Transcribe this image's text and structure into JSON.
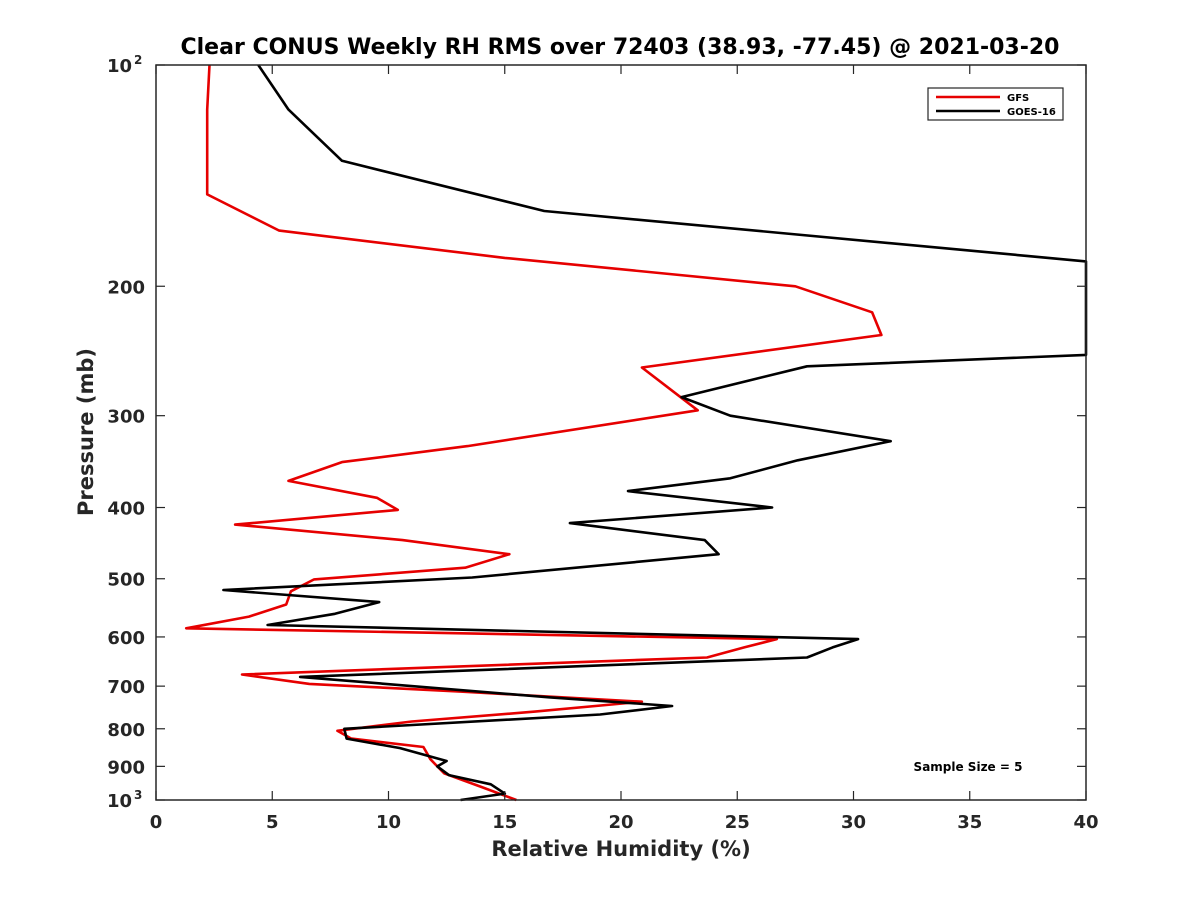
{
  "chart_data": {
    "type": "line",
    "title": "Clear CONUS Weekly RH RMS over 72403 (38.93, -77.45) @ 2021-03-20",
    "xlabel": "Relative Humidity (%)",
    "ylabel": "Pressure (mb)",
    "xlim": [
      0,
      40
    ],
    "ylim": [
      100,
      1000
    ],
    "yscale": "log",
    "y_reversed": true,
    "grid": false,
    "legend_position": "top-right",
    "x_ticks": [
      {
        "value": 0,
        "label": "0"
      },
      {
        "value": 5,
        "label": "5"
      },
      {
        "value": 10,
        "label": "10"
      },
      {
        "value": 15,
        "label": "15"
      },
      {
        "value": 20,
        "label": "20"
      },
      {
        "value": 25,
        "label": "25"
      },
      {
        "value": 30,
        "label": "30"
      },
      {
        "value": 35,
        "label": "35"
      },
      {
        "value": 40,
        "label": "40"
      }
    ],
    "y_ticks": [
      {
        "value": 100,
        "label": "10",
        "sup": "2"
      },
      {
        "value": 200,
        "label": "200"
      },
      {
        "value": 300,
        "label": "300"
      },
      {
        "value": 400,
        "label": "400"
      },
      {
        "value": 500,
        "label": "500"
      },
      {
        "value": 600,
        "label": "600"
      },
      {
        "value": 700,
        "label": "700"
      },
      {
        "value": 800,
        "label": "800"
      },
      {
        "value": 900,
        "label": "900"
      },
      {
        "value": 1000,
        "label": "10",
        "sup": "3"
      }
    ],
    "annotation": "Sample Size = 5",
    "series": [
      {
        "name": "GFS",
        "color": "#e60000",
        "points": [
          [
            2.3,
            100
          ],
          [
            2.2,
            115
          ],
          [
            2.2,
            135
          ],
          [
            2.2,
            150
          ],
          [
            5.3,
            168
          ],
          [
            15.0,
            183
          ],
          [
            27.5,
            200
          ],
          [
            30.8,
            217
          ],
          [
            31.2,
            233
          ],
          [
            20.9,
            258
          ],
          [
            23.3,
            295
          ],
          [
            13.4,
            330
          ],
          [
            8.0,
            347
          ],
          [
            5.7,
            368
          ],
          [
            9.5,
            388
          ],
          [
            10.4,
            403
          ],
          [
            3.4,
            422
          ],
          [
            10.6,
            443
          ],
          [
            15.2,
            463
          ],
          [
            13.3,
            483
          ],
          [
            6.8,
            501
          ],
          [
            5.8,
            520
          ],
          [
            5.6,
            542
          ],
          [
            4.0,
            563
          ],
          [
            1.3,
            584
          ],
          [
            26.7,
            604
          ],
          [
            25.3,
            620
          ],
          [
            23.7,
            640
          ],
          [
            11.9,
            660
          ],
          [
            3.7,
            675
          ],
          [
            6.6,
            695
          ],
          [
            13.1,
            712
          ],
          [
            20.9,
            735
          ],
          [
            16.3,
            758
          ],
          [
            11.0,
            782
          ],
          [
            7.8,
            805
          ],
          [
            8.4,
            825
          ],
          [
            11.5,
            847
          ],
          [
            11.8,
            880
          ],
          [
            12.1,
            900
          ],
          [
            12.4,
            920
          ],
          [
            14.0,
            960
          ],
          [
            15.5,
            1000
          ]
        ]
      },
      {
        "name": "GOES-16",
        "color": "#000000",
        "points": [
          [
            4.4,
            100
          ],
          [
            5.7,
            115
          ],
          [
            8.0,
            135
          ],
          [
            16.7,
            158
          ],
          [
            40.0,
            185
          ],
          [
            40.0,
            248
          ],
          [
            28.0,
            257
          ],
          [
            22.6,
            283
          ],
          [
            24.7,
            300
          ],
          [
            31.6,
            325
          ],
          [
            27.6,
            345
          ],
          [
            24.7,
            365
          ],
          [
            20.3,
            380
          ],
          [
            26.5,
            400
          ],
          [
            17.8,
            420
          ],
          [
            23.6,
            443
          ],
          [
            24.2,
            463
          ],
          [
            13.6,
            498
          ],
          [
            2.9,
            518
          ],
          [
            9.6,
            538
          ],
          [
            7.7,
            558
          ],
          [
            4.8,
            578
          ],
          [
            30.2,
            604
          ],
          [
            29.1,
            620
          ],
          [
            28.0,
            640
          ],
          [
            6.2,
            680
          ],
          [
            16.9,
            725
          ],
          [
            22.2,
            745
          ],
          [
            19.1,
            765
          ],
          [
            8.1,
            800
          ],
          [
            8.2,
            825
          ],
          [
            10.5,
            850
          ],
          [
            12.5,
            885
          ],
          [
            12.1,
            900
          ],
          [
            12.6,
            925
          ],
          [
            14.4,
            952
          ],
          [
            15.0,
            980
          ],
          [
            13.1,
            1000
          ]
        ]
      }
    ]
  }
}
